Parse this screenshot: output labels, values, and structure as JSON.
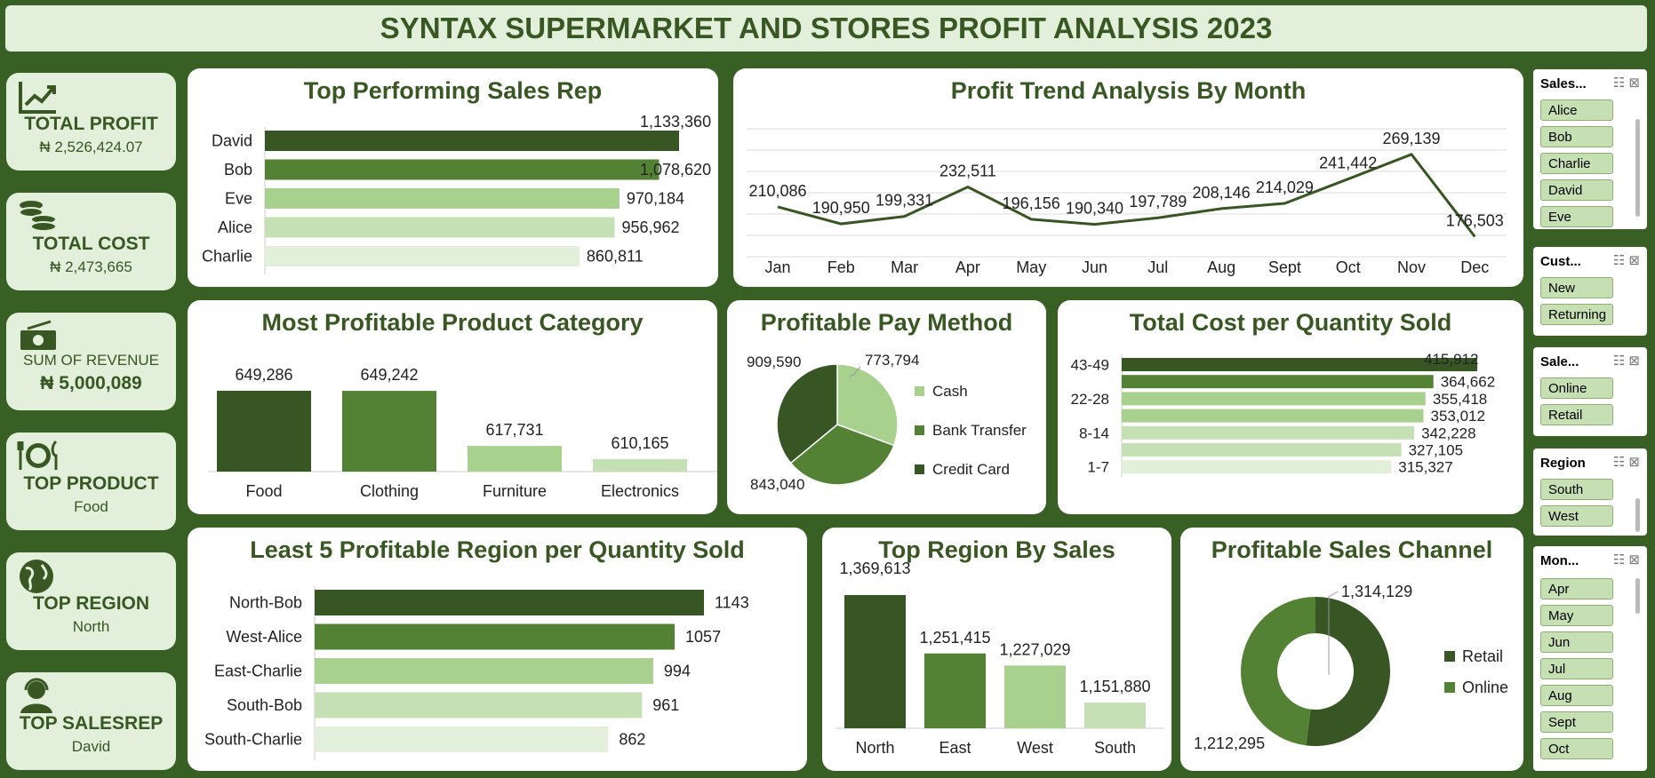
{
  "header": {
    "title": "SYNTAX SUPERMARKET AND STORES PROFIT ANALYSIS 2023"
  },
  "colors": {
    "dark": "#375623",
    "mid": "#548235",
    "light": "#a9d18e",
    "lighter": "#c5e0b4",
    "lightest": "#e2efda",
    "background": "#386025"
  },
  "kpis": [
    {
      "icon": "chart-line-icon",
      "label": "TOTAL PROFIT",
      "value": "₦ 2,526,424.07"
    },
    {
      "icon": "coins-icon",
      "label": "TOTAL COST",
      "value": "₦ 2,473,665"
    },
    {
      "icon": "cash-icon",
      "label": "SUM OF REVENUE",
      "value": "₦ 5,000,089"
    },
    {
      "icon": "plate-cutlery-icon",
      "label": "TOP PRODUCT",
      "value": "Food"
    },
    {
      "icon": "globe-icon",
      "label": "TOP REGION",
      "value": "North"
    },
    {
      "icon": "headset-person-icon",
      "label": "TOP SALESREP",
      "value": "David"
    }
  ],
  "chart_data": [
    {
      "id": "sales_rep",
      "type": "bar",
      "orientation": "horizontal",
      "title": "Top Performing Sales Rep",
      "categories": [
        "David",
        "Bob",
        "Eve",
        "Alice",
        "Charlie"
      ],
      "values": [
        1133360,
        1078620,
        970184,
        956962,
        860811
      ],
      "labels": [
        "1,133,360",
        "1,078,620",
        "970,184",
        "956,962",
        "860,811"
      ]
    },
    {
      "id": "profit_trend",
      "type": "line",
      "title": "Profit Trend Analysis By Month",
      "categories": [
        "Jan",
        "Feb",
        "Mar",
        "Apr",
        "May",
        "Jun",
        "Jul",
        "Aug",
        "Sept",
        "Oct",
        "Nov",
        "Dec"
      ],
      "values": [
        210086,
        190950,
        199331,
        232511,
        196156,
        190340,
        197789,
        208146,
        214029,
        241442,
        269139,
        176503
      ],
      "labels": [
        "210,086",
        "190,950",
        "199,331",
        "232,511",
        "196,156",
        "190,340",
        "197,789",
        "208,146",
        "214,029",
        "241,442",
        "269,139",
        "176,503"
      ]
    },
    {
      "id": "product_category",
      "type": "bar",
      "orientation": "vertical",
      "title": "Most Profitable Product Category",
      "categories": [
        "Food",
        "Clothing",
        "Furniture",
        "Electronics"
      ],
      "values": [
        649286,
        649242,
        617731,
        610165
      ],
      "labels": [
        "649,286",
        "649,242",
        "617,731",
        "610,165"
      ]
    },
    {
      "id": "pay_method",
      "type": "pie",
      "title": "Profitable Pay Method",
      "categories": [
        "Cash",
        "Bank Transfer",
        "Credit Card"
      ],
      "values": [
        773794,
        843040,
        909590
      ],
      "labels": [
        "773,794",
        "843,040",
        "909,590"
      ],
      "legend": "right"
    },
    {
      "id": "cost_per_qty",
      "type": "bar",
      "orientation": "horizontal",
      "title": "Total Cost per Quantity Sold",
      "categories": [
        "43-49",
        "",
        "22-28",
        "",
        "8-14",
        "",
        "1-7"
      ],
      "values": [
        415912,
        364662,
        355418,
        353012,
        342228,
        327105,
        315327
      ],
      "labels": [
        "415,912",
        "364,662",
        "355,418",
        "353,012",
        "342,228",
        "327,105",
        "315,327"
      ]
    },
    {
      "id": "least_region",
      "type": "bar",
      "orientation": "horizontal",
      "title": "Least 5 Profitable Region per Quantity Sold",
      "categories": [
        "North-Bob",
        "West-Alice",
        "East-Charlie",
        "South-Bob",
        "South-Charlie"
      ],
      "values": [
        1143,
        1057,
        994,
        961,
        862
      ],
      "labels": [
        "1143",
        "1057",
        "994",
        "961",
        "862"
      ]
    },
    {
      "id": "region_sales",
      "type": "bar",
      "orientation": "vertical",
      "title": "Top Region By Sales",
      "categories": [
        "North",
        "East",
        "West",
        "South"
      ],
      "values": [
        1369613,
        1251415,
        1227029,
        1151880
      ],
      "labels": [
        "1,369,613",
        "1,251,415",
        "1,227,029",
        "1,151,880"
      ]
    },
    {
      "id": "sales_channel",
      "type": "pie",
      "variant": "donut",
      "title": "Profitable Sales Channel",
      "categories": [
        "Retail",
        "Online"
      ],
      "values": [
        1314129,
        1212295
      ],
      "labels": [
        "1,314,129",
        "1,212,295"
      ],
      "legend": "right"
    }
  ],
  "slicers": [
    {
      "title": "Sales...",
      "items": [
        "Alice",
        "Bob",
        "Charlie",
        "David",
        "Eve"
      ]
    },
    {
      "title": "Cust...",
      "items": [
        "New",
        "Returning"
      ]
    },
    {
      "title": "Sale...",
      "items": [
        "Online",
        "Retail"
      ]
    },
    {
      "title": "Region",
      "items": [
        "South",
        "West"
      ]
    },
    {
      "title": "Mon...",
      "items": [
        "Apr",
        "May",
        "Jun",
        "Jul",
        "Aug",
        "Sept",
        "Oct"
      ]
    }
  ]
}
